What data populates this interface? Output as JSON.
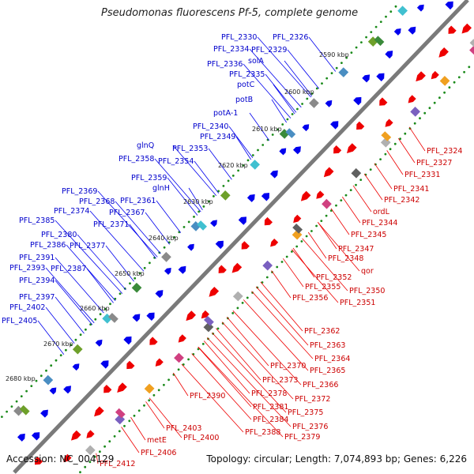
{
  "title": "Pseudomonas fluorescens Pf-5, complete genome",
  "footer": {
    "accession": "Accession: NC_004129",
    "summary": "Topology: circular; Length: 7,074,893 bp; Genes: 6,226"
  },
  "colors": {
    "forward": "#0000ee",
    "reverse": "#ee0000",
    "backbone": "#777777",
    "tick_dots": "#1a8a1a"
  },
  "ticks": [
    "2590 kbp",
    "2600 kbp",
    "2610 kbp",
    "2620 kbp",
    "2630 kbp",
    "2640 kbp",
    "2650 kbp",
    "2660 kbp",
    "2670 kbp",
    "2680 kbp"
  ],
  "forward_labels": [
    "PFL_2330",
    "PFL_2326",
    "PFL_2334",
    "PFL_2329",
    "solA",
    "PFL_2336",
    "PFL_2335",
    "potC",
    "potB",
    "potA-1",
    "PFL_2340",
    "PFL_2349",
    "glnQ",
    "PFL_2353",
    "PFL_2358",
    "PFL_2354",
    "PFL_2359",
    "glnH",
    "PFL_2369",
    "PFL_2368",
    "PFL_2361",
    "PFL_2374",
    "PFL_2367",
    "PFL_2371",
    "PFL_2385",
    "PFL_2380",
    "PFL_2386",
    "PFL_2377",
    "PFL_2391",
    "PFL_2393",
    "PFL_2387",
    "PFL_2394",
    "PFL_2397",
    "PFL_2402",
    "PFL_2405"
  ],
  "reverse_labels": [
    "PFL_2324",
    "PFL_2327",
    "PFL_2331",
    "PFL_2341",
    "PFL_2342",
    "ordL",
    "PFL_2344",
    "PFL_2345",
    "PFL_2347",
    "PFL_2348",
    "qor",
    "PFL_2352",
    "PFL_2355",
    "PFL_2350",
    "PFL_2356",
    "PFL_2351",
    "PFL_2362",
    "PFL_2363",
    "PFL_2364",
    "PFL_2370",
    "PFL_2365",
    "PFL_2373",
    "PFL_2366",
    "PFL_2378",
    "PFL_2372",
    "PFL_2381",
    "PFL_2375",
    "PFL_2390",
    "PFL_2384",
    "PFL_2376",
    "PFL_2388",
    "PFL_2379",
    "PFL_2403",
    "PFL_2400",
    "metE",
    "PFL_2406",
    "PFL_2412"
  ]
}
